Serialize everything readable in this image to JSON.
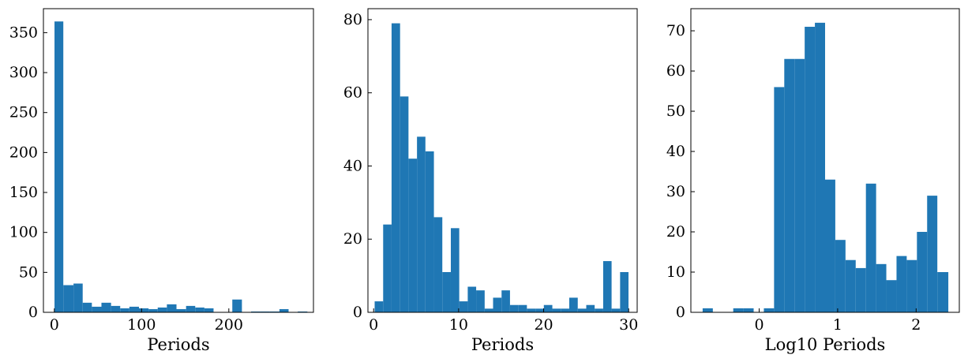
{
  "chart_data": [
    {
      "type": "bar",
      "xlabel": "Periods",
      "ylabel": "",
      "xlim": [
        -12.5,
        297.0
      ],
      "ylim": [
        0,
        380
      ],
      "xticks": [
        0,
        100,
        200
      ],
      "yticks": [
        0,
        50,
        100,
        150,
        200,
        250,
        300,
        350
      ],
      "bin_edges": [
        0.2,
        10.3,
        22.0,
        32.5,
        43.0,
        54.0,
        65.0,
        75.5,
        86.0,
        97.0,
        108.0,
        118.5,
        129.0,
        140.0,
        151.0,
        161.5,
        172.0,
        182.5,
        193.5,
        204.0,
        215.0,
        225.5,
        236.0,
        247.0,
        258.0,
        268.5,
        279.0,
        290.0
      ],
      "values": [
        364,
        34,
        36,
        12,
        7,
        12,
        8,
        5,
        7,
        5,
        4,
        6,
        10,
        4,
        8,
        6,
        5,
        0,
        0,
        16,
        0,
        1,
        1,
        1,
        4,
        0,
        1
      ],
      "color": "#1f77b4"
    },
    {
      "type": "bar",
      "xlabel": "Periods",
      "ylabel": "",
      "xlim": [
        -0.67,
        31.0
      ],
      "ylim": [
        0,
        83
      ],
      "xticks": [
        0,
        10,
        20,
        30
      ],
      "yticks": [
        0,
        20,
        40,
        60,
        80
      ],
      "bin_edges": [
        0.12,
        1.12,
        2.11,
        3.11,
        4.1,
        5.1,
        6.09,
        7.09,
        8.08,
        9.08,
        10.07,
        11.07,
        12.06,
        13.06,
        14.05,
        15.05,
        16.04,
        17.04,
        18.03,
        19.03,
        20.02,
        21.02,
        22.01,
        23.01,
        24.01,
        25.01,
        26.0,
        27.0,
        27.99,
        28.99,
        29.98
      ],
      "values": [
        3,
        24,
        79,
        59,
        42,
        48,
        44,
        26,
        11,
        23,
        3,
        7,
        6,
        1,
        4,
        6,
        2,
        2,
        1,
        1,
        2,
        1,
        1,
        4,
        1,
        2,
        1,
        14,
        1,
        11
      ],
      "color": "#1f77b4"
    },
    {
      "type": "bar",
      "xlabel": "Log10 Periods",
      "ylabel": "",
      "xlim": [
        -0.87,
        2.55
      ],
      "ylim": [
        0,
        75.5
      ],
      "xticks": [
        0,
        1,
        2
      ],
      "yticks": [
        0,
        10,
        20,
        30,
        40,
        50,
        60,
        70
      ],
      "bin_edges": [
        -0.72,
        -0.59,
        -0.46,
        -0.33,
        -0.2,
        -0.07,
        0.06,
        0.19,
        0.32,
        0.45,
        0.58,
        0.71,
        0.84,
        0.97,
        1.1,
        1.23,
        1.36,
        1.49,
        1.62,
        1.75,
        1.88,
        2.01,
        2.14,
        2.27,
        2.41
      ],
      "values": [
        1,
        0,
        0,
        1,
        1,
        0,
        1,
        56,
        63,
        63,
        71,
        72,
        33,
        18,
        13,
        11,
        32,
        12,
        8,
        14,
        13,
        20,
        29,
        10
      ],
      "color": "#1f77b4"
    }
  ]
}
